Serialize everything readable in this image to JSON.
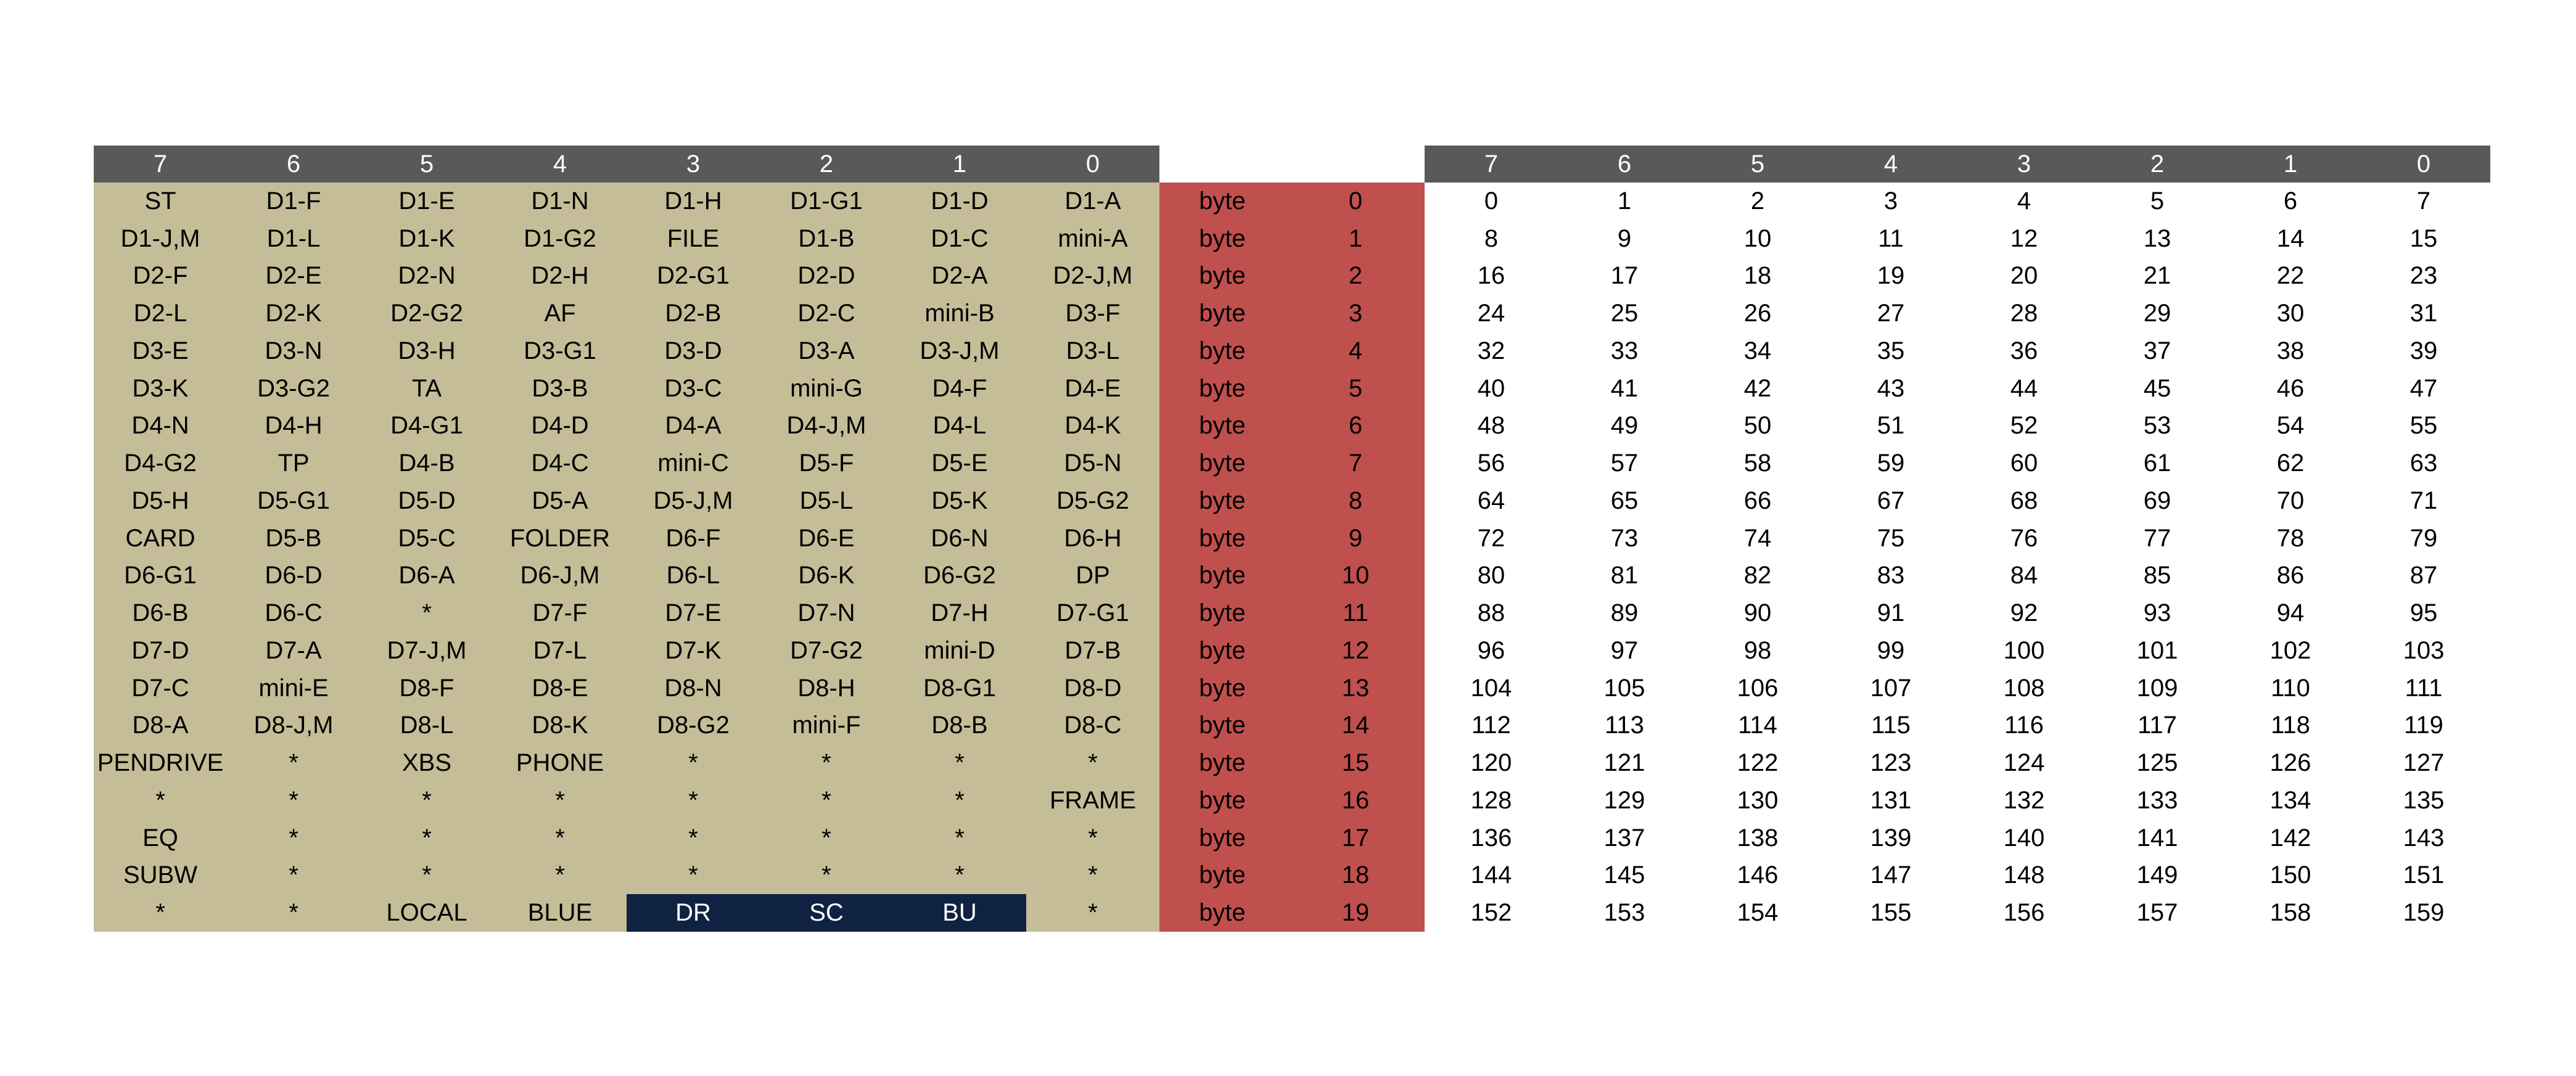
{
  "bit_headers": [
    "7",
    "6",
    "5",
    "4",
    "3",
    "2",
    "1",
    "0"
  ],
  "colors": {
    "header_bg": "#595959",
    "segment_bg": "#c4bd97",
    "highlight_bg": "#0f2241",
    "byte_column_bg": "#c0504d"
  },
  "segment_map": [
    [
      "ST",
      "D1-F",
      "D1-E",
      "D1-N",
      "D1-H",
      "D1-G1",
      "D1-D",
      "D1-A"
    ],
    [
      "D1-J,M",
      "D1-L",
      "D1-K",
      "D1-G2",
      "FILE",
      "D1-B",
      "D1-C",
      "mini-A"
    ],
    [
      "D2-F",
      "D2-E",
      "D2-N",
      "D2-H",
      "D2-G1",
      "D2-D",
      "D2-A",
      "D2-J,M"
    ],
    [
      "D2-L",
      "D2-K",
      "D2-G2",
      "AF",
      "D2-B",
      "D2-C",
      "mini-B",
      "D3-F"
    ],
    [
      "D3-E",
      "D3-N",
      "D3-H",
      "D3-G1",
      "D3-D",
      "D3-A",
      "D3-J,M",
      "D3-L"
    ],
    [
      "D3-K",
      "D3-G2",
      "TA",
      "D3-B",
      "D3-C",
      "mini-G",
      "D4-F",
      "D4-E"
    ],
    [
      "D4-N",
      "D4-H",
      "D4-G1",
      "D4-D",
      "D4-A",
      "D4-J,M",
      "D4-L",
      "D4-K"
    ],
    [
      "D4-G2",
      "TP",
      "D4-B",
      "D4-C",
      "mini-C",
      "D5-F",
      "D5-E",
      "D5-N"
    ],
    [
      "D5-H",
      "D5-G1",
      "D5-D",
      "D5-A",
      "D5-J,M",
      "D5-L",
      "D5-K",
      "D5-G2"
    ],
    [
      "CARD",
      "D5-B",
      "D5-C",
      "FOLDER",
      "D6-F",
      "D6-E",
      "D6-N",
      "D6-H"
    ],
    [
      "D6-G1",
      "D6-D",
      "D6-A",
      "D6-J,M",
      "D6-L",
      "D6-K",
      "D6-G2",
      "DP"
    ],
    [
      "D6-B",
      "D6-C",
      "*",
      "D7-F",
      "D7-E",
      "D7-N",
      "D7-H",
      "D7-G1"
    ],
    [
      "D7-D",
      "D7-A",
      "D7-J,M",
      "D7-L",
      "D7-K",
      "D7-G2",
      "mini-D",
      "D7-B"
    ],
    [
      "D7-C",
      "mini-E",
      "D8-F",
      "D8-E",
      "D8-N",
      "D8-H",
      "D8-G1",
      "D8-D"
    ],
    [
      "D8-A",
      "D8-J,M",
      "D8-L",
      "D8-K",
      "D8-G2",
      "mini-F",
      "D8-B",
      "D8-C"
    ],
    [
      "PENDRIVE",
      "*",
      "XBS",
      "PHONE",
      "*",
      "*",
      "*",
      "*"
    ],
    [
      "*",
      "*",
      "*",
      "*",
      "*",
      "*",
      "*",
      "FRAME"
    ],
    [
      "EQ",
      "*",
      "*",
      "*",
      "*",
      "*",
      "*",
      "*"
    ],
    [
      "SUBW",
      "*",
      "*",
      "*",
      "*",
      "*",
      "*",
      "*"
    ],
    [
      "*",
      "*",
      "LOCAL",
      "BLUE",
      "DR",
      "SC",
      "BU",
      "*"
    ]
  ],
  "highlighted_cells": [
    [
      19,
      4
    ],
    [
      19,
      5
    ],
    [
      19,
      6
    ]
  ],
  "byte_label": "byte",
  "byte_numbers": [
    "0",
    "1",
    "2",
    "3",
    "4",
    "5",
    "6",
    "7",
    "8",
    "9",
    "10",
    "11",
    "12",
    "13",
    "14",
    "15",
    "16",
    "17",
    "18",
    "19"
  ],
  "bit_index_map": [
    [
      "0",
      "1",
      "2",
      "3",
      "4",
      "5",
      "6",
      "7"
    ],
    [
      "8",
      "9",
      "10",
      "11",
      "12",
      "13",
      "14",
      "15"
    ],
    [
      "16",
      "17",
      "18",
      "19",
      "20",
      "21",
      "22",
      "23"
    ],
    [
      "24",
      "25",
      "26",
      "27",
      "28",
      "29",
      "30",
      "31"
    ],
    [
      "32",
      "33",
      "34",
      "35",
      "36",
      "37",
      "38",
      "39"
    ],
    [
      "40",
      "41",
      "42",
      "43",
      "44",
      "45",
      "46",
      "47"
    ],
    [
      "48",
      "49",
      "50",
      "51",
      "52",
      "53",
      "54",
      "55"
    ],
    [
      "56",
      "57",
      "58",
      "59",
      "60",
      "61",
      "62",
      "63"
    ],
    [
      "64",
      "65",
      "66",
      "67",
      "68",
      "69",
      "70",
      "71"
    ],
    [
      "72",
      "73",
      "74",
      "75",
      "76",
      "77",
      "78",
      "79"
    ],
    [
      "80",
      "81",
      "82",
      "83",
      "84",
      "85",
      "86",
      "87"
    ],
    [
      "88",
      "89",
      "90",
      "91",
      "92",
      "93",
      "94",
      "95"
    ],
    [
      "96",
      "97",
      "98",
      "99",
      "100",
      "101",
      "102",
      "103"
    ],
    [
      "104",
      "105",
      "106",
      "107",
      "108",
      "109",
      "110",
      "111"
    ],
    [
      "112",
      "113",
      "114",
      "115",
      "116",
      "117",
      "118",
      "119"
    ],
    [
      "120",
      "121",
      "122",
      "123",
      "124",
      "125",
      "126",
      "127"
    ],
    [
      "128",
      "129",
      "130",
      "131",
      "132",
      "133",
      "134",
      "135"
    ],
    [
      "136",
      "137",
      "138",
      "139",
      "140",
      "141",
      "142",
      "143"
    ],
    [
      "144",
      "145",
      "146",
      "147",
      "148",
      "149",
      "150",
      "151"
    ],
    [
      "152",
      "153",
      "154",
      "155",
      "156",
      "157",
      "158",
      "159"
    ]
  ]
}
